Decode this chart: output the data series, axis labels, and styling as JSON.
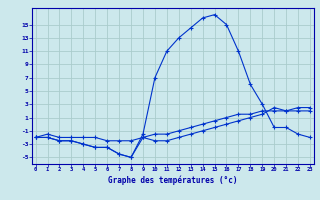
{
  "xlabel": "Graphe des températures (°c)",
  "background_color": "#cce8ec",
  "grid_color": "#aacccc",
  "line_color": "#0033cc",
  "x": [
    0,
    1,
    2,
    3,
    4,
    5,
    6,
    7,
    8,
    9,
    10,
    11,
    12,
    13,
    14,
    15,
    16,
    17,
    18,
    19,
    20,
    21,
    22,
    23
  ],
  "line1": [
    -2,
    -2,
    -2.5,
    -2.5,
    -3,
    -3.5,
    -3.5,
    -4.5,
    -5,
    -1.5,
    7,
    11,
    13,
    14.5,
    16,
    16.5,
    15,
    11,
    6,
    3,
    -0.5,
    -0.5,
    -1.5,
    -2
  ],
  "line2": [
    -2,
    -2,
    -2.5,
    -2.5,
    -3,
    -3.5,
    -3.5,
    -4.5,
    -5,
    -2,
    -2.5,
    -2.5,
    -2,
    -1.5,
    -1,
    -0.5,
    0,
    0.5,
    1,
    1.5,
    2.5,
    2,
    2.5,
    2.5
  ],
  "line3": [
    -2,
    -1.5,
    -2,
    -2,
    -2,
    -2,
    -2.5,
    -2.5,
    -2.5,
    -2,
    -1.5,
    -1.5,
    -1,
    -0.5,
    0,
    0.5,
    1,
    1.5,
    1.5,
    2,
    2,
    2,
    2,
    2
  ],
  "yticks": [
    -5,
    -3,
    -1,
    1,
    3,
    5,
    7,
    9,
    11,
    13,
    15
  ],
  "ytick_labels": [
    "-5",
    "-3",
    "-1",
    "1",
    "3",
    "5",
    "7",
    "9",
    "11",
    "13",
    "15"
  ],
  "ylim": [
    -6.0,
    17.5
  ],
  "xlim": [
    -0.3,
    23.3
  ],
  "xticks": [
    0,
    1,
    2,
    3,
    4,
    5,
    6,
    7,
    8,
    9,
    10,
    11,
    12,
    13,
    14,
    15,
    16,
    17,
    18,
    19,
    20,
    21,
    22,
    23
  ]
}
